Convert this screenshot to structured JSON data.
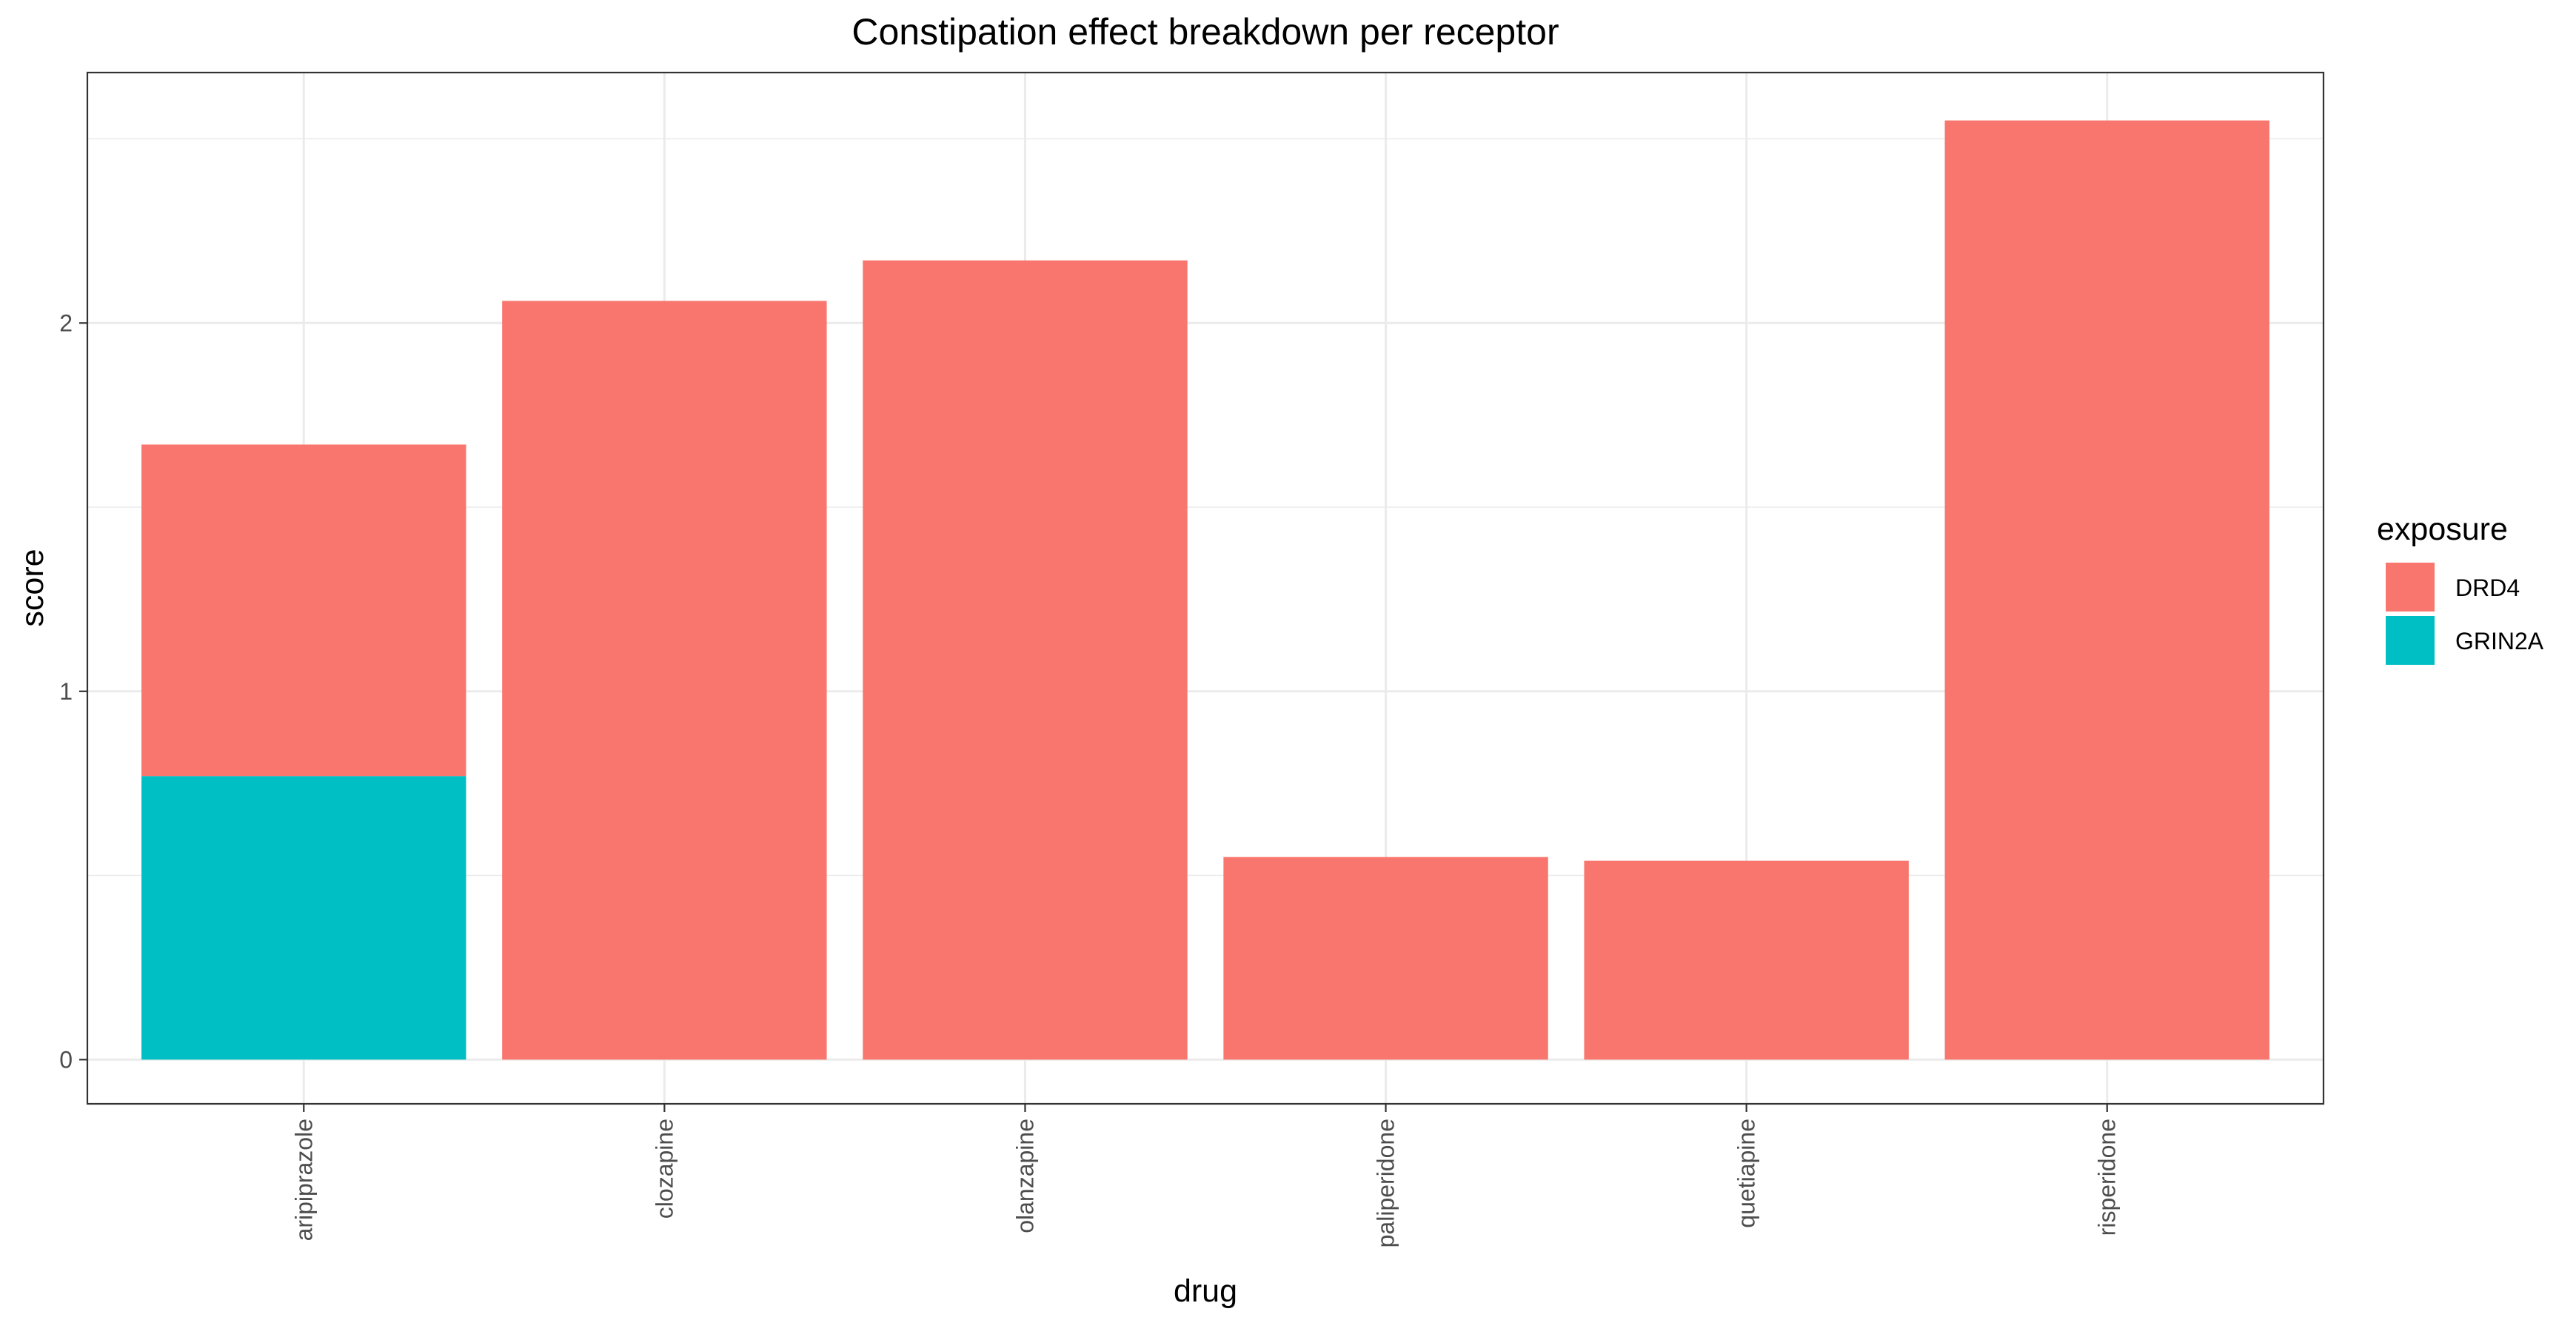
{
  "chart_data": {
    "type": "bar",
    "stacked": true,
    "title": "Constipation effect breakdown per receptor",
    "xlabel": "drug",
    "ylabel": "score",
    "categories": [
      "aripiprazole",
      "clozapine",
      "olanzapine",
      "paliperidone",
      "quetiapine",
      "risperidone"
    ],
    "series": [
      {
        "name": "GRIN2A",
        "color": "#00BFC4",
        "values": [
          0.77,
          0,
          0,
          0,
          0,
          0
        ]
      },
      {
        "name": "DRD4",
        "color": "#F8766D",
        "values": [
          0.9,
          2.06,
          2.17,
          0.55,
          0.54,
          2.55
        ]
      }
    ],
    "ylim": [
      -0.12,
      2.68
    ],
    "yticks": [
      0,
      1,
      2
    ],
    "grid": true,
    "legend": {
      "title": "exposure",
      "position": "right",
      "entries": [
        {
          "label": "DRD4",
          "color": "#F8766D"
        },
        {
          "label": "GRIN2A",
          "color": "#00BFC4"
        }
      ]
    }
  }
}
